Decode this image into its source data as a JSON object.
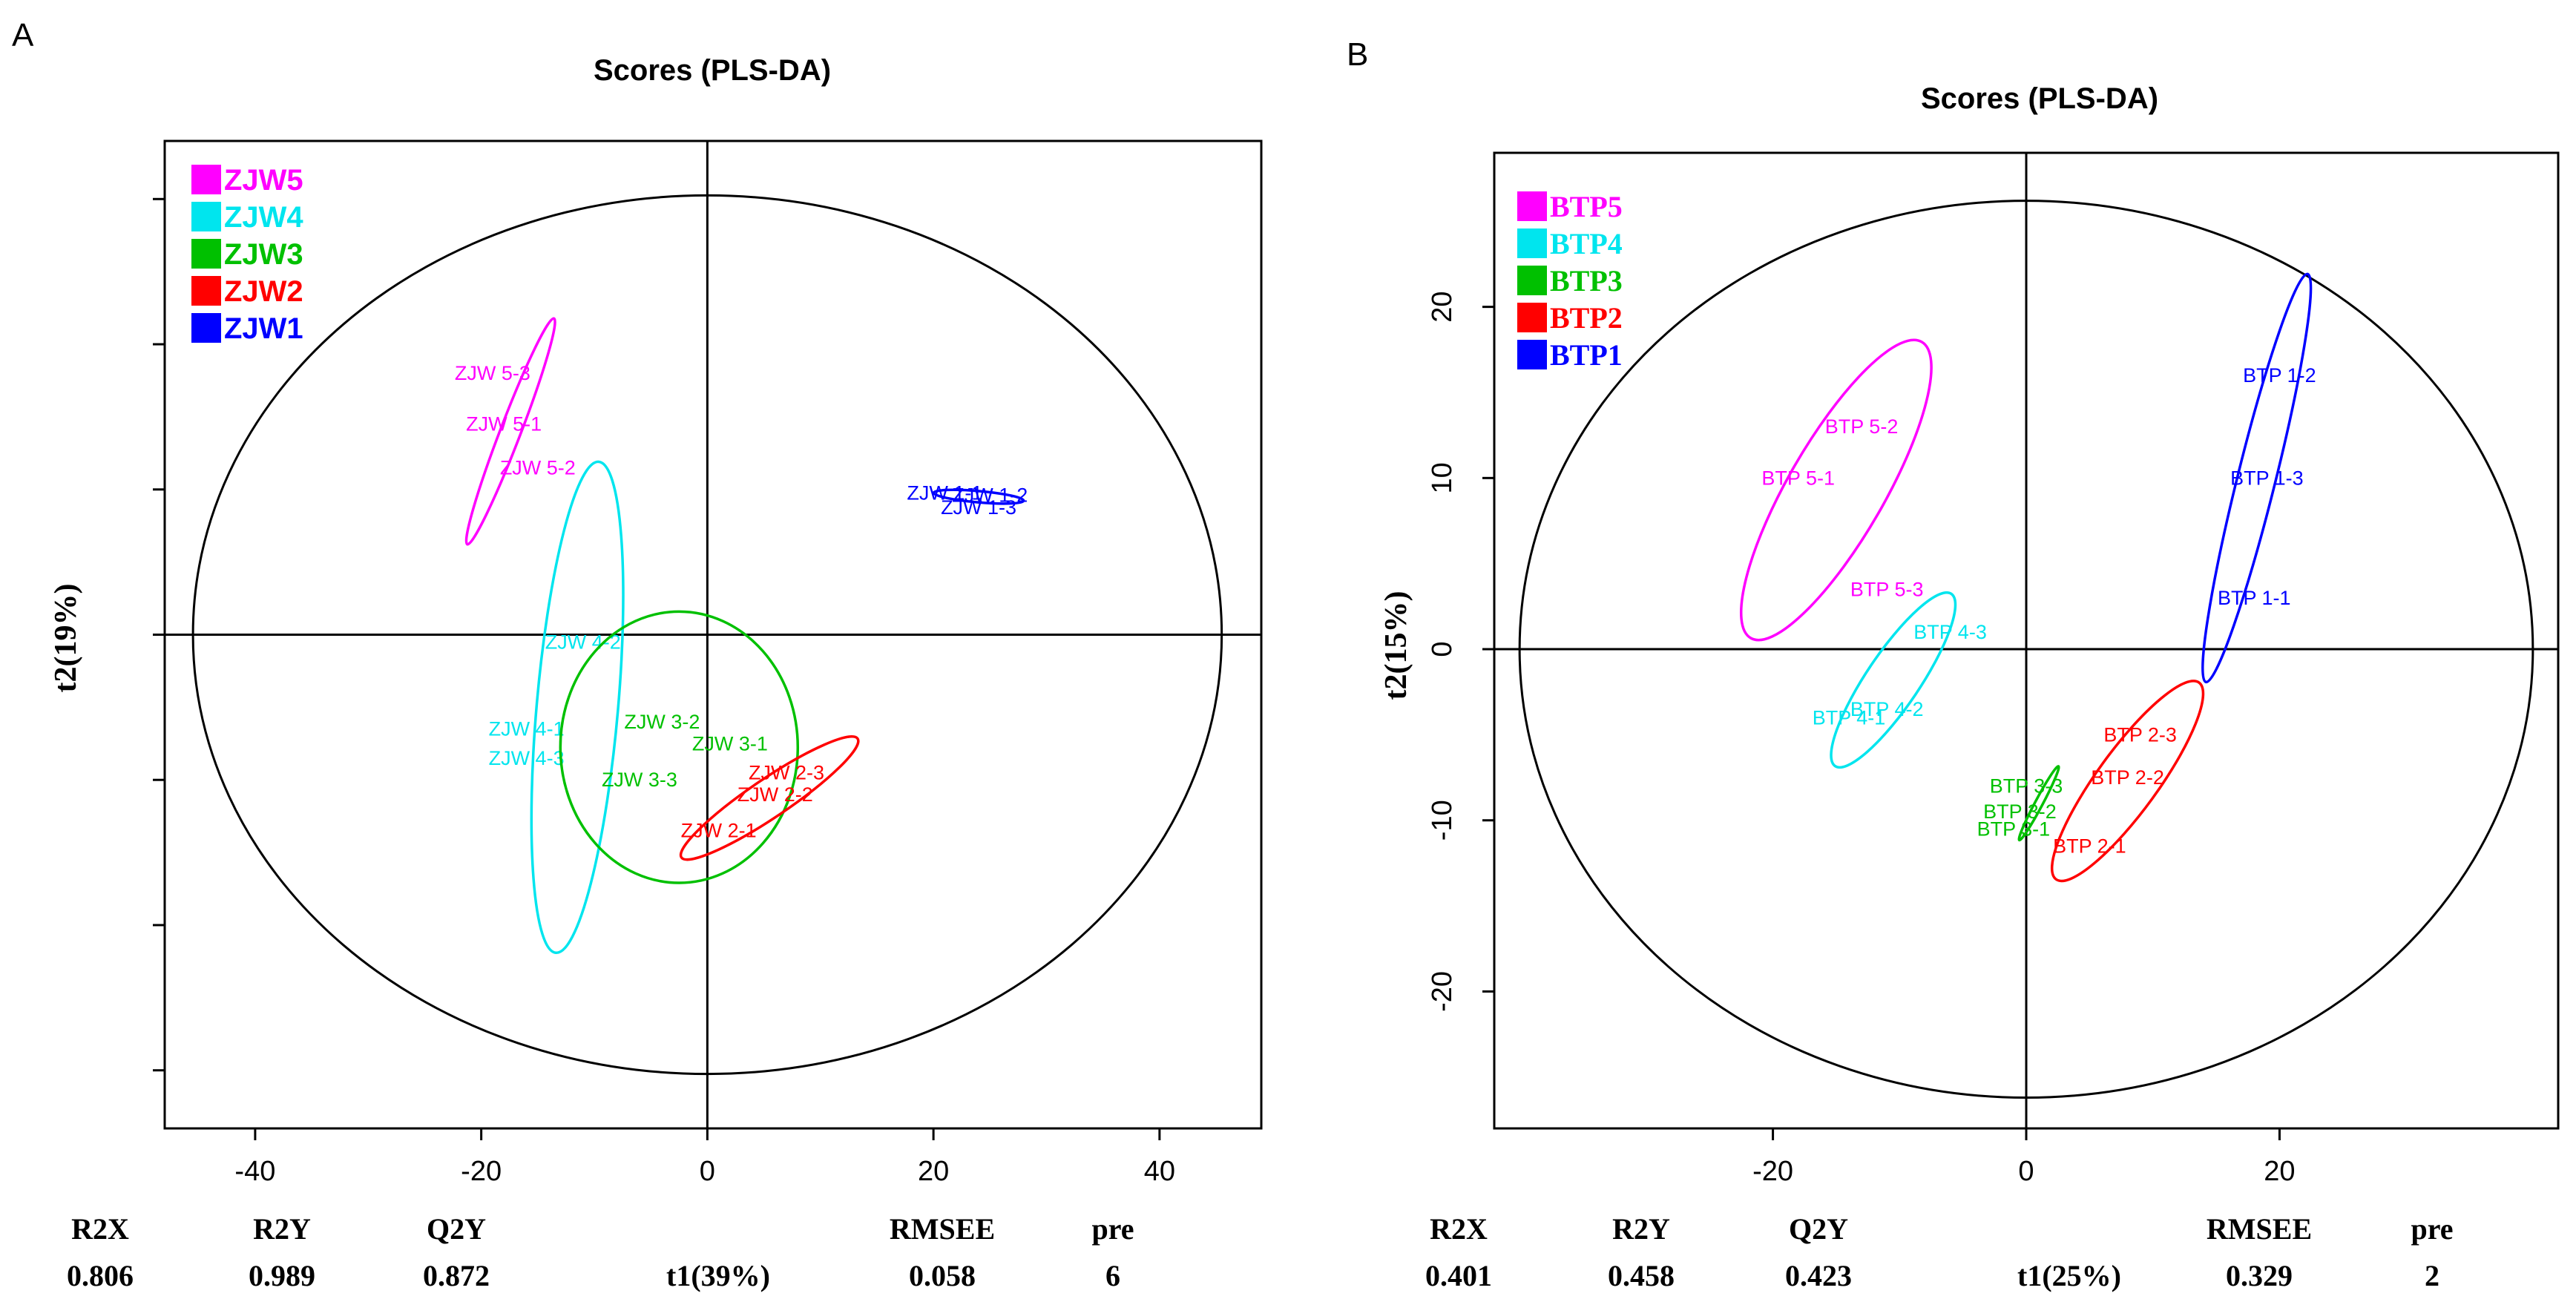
{
  "chart_data": [
    {
      "type": "scatter",
      "panel_letter": "A",
      "title": "Scores (PLS-DA)",
      "xlabel": "t1(39%)",
      "ylabel": "t2(19%)",
      "xlim": [
        -48,
        49
      ],
      "ylim": [
        -68,
        68
      ],
      "xticks": [
        -40,
        -20,
        0,
        20,
        40
      ],
      "yticks": [
        -60,
        -40,
        -20,
        0,
        20,
        40,
        60
      ],
      "ytick_labels_shown": false,
      "hotelling_ellipse": {
        "cx": 0,
        "cy": 0,
        "rx": 45.5,
        "ry": 60.5
      },
      "stats": [
        {
          "name": "R2X",
          "value": "0.806"
        },
        {
          "name": "R2Y",
          "value": "0.989"
        },
        {
          "name": "Q2Y",
          "value": "0.872"
        },
        {
          "name": "RMSEE",
          "value": "0.058"
        },
        {
          "name": "pre",
          "value": "6"
        }
      ],
      "legend_font": "sans",
      "series": [
        {
          "name": "ZJW5",
          "color": "#ff00ff",
          "points": [
            {
              "label": "ZJW 5-3",
              "x": -19,
              "y": 36
            },
            {
              "label": "ZJW 5-1",
              "x": -18,
              "y": 29
            },
            {
              "label": "ZJW 5-2",
              "x": -15,
              "y": 23
            }
          ],
          "ellipse": {
            "cx": -17.4,
            "cy": 28,
            "rx": 10.7,
            "ry": 0.9,
            "angle": -69
          }
        },
        {
          "name": "ZJW4",
          "color": "#00e5ee",
          "points": [
            {
              "label": "ZJW 4-2",
              "x": -11,
              "y": -1
            },
            {
              "label": "ZJW 4-1",
              "x": -16,
              "y": -13
            },
            {
              "label": "ZJW 4-3",
              "x": -16,
              "y": -17
            }
          ],
          "ellipse": {
            "cx": -11.5,
            "cy": -10,
            "rx": 3.6,
            "ry": 21.8,
            "angle": 5
          }
        },
        {
          "name": "ZJW3",
          "color": "#00c000",
          "points": [
            {
              "label": "ZJW 3-2",
              "x": -4,
              "y": -12
            },
            {
              "label": "ZJW 3-1",
              "x": 2,
              "y": -15
            },
            {
              "label": "ZJW 3-3",
              "x": -6,
              "y": -20
            }
          ],
          "ellipse": {
            "cx": -2.5,
            "cy": -15.5,
            "rx": 10.5,
            "ry": 12,
            "angle": 0
          }
        },
        {
          "name": "ZJW2",
          "color": "#ff0000",
          "points": [
            {
              "label": "ZJW 2-3",
              "x": 7,
              "y": -19
            },
            {
              "label": "ZJW 2-2",
              "x": 6,
              "y": -22
            },
            {
              "label": "ZJW 2-1",
              "x": 1,
              "y": -27
            }
          ],
          "ellipse": {
            "cx": 5.5,
            "cy": -22.5,
            "rx": 9.4,
            "ry": 1.7,
            "angle": -34
          }
        },
        {
          "name": "ZJW1",
          "color": "#0000ff",
          "points": [
            {
              "label": "ZJW 1-1",
              "x": 21,
              "y": 19.5
            },
            {
              "label": "ZJW 1-2",
              "x": 25,
              "y": 19.2
            },
            {
              "label": "ZJW 1-3",
              "x": 24,
              "y": 17.5
            }
          ],
          "ellipse": {
            "cx": 24,
            "cy": 19,
            "rx": 4,
            "ry": 0.5,
            "angle": 5
          }
        }
      ]
    },
    {
      "type": "scatter",
      "panel_letter": "B",
      "title": "Scores (PLS-DA)",
      "xlabel": "t1(25%)",
      "ylabel": "t2(15%)",
      "xlim": [
        -42,
        42
      ],
      "ylim": [
        -28,
        29
      ],
      "xticks": [
        -20,
        0,
        20
      ],
      "yticks": [
        -20,
        -10,
        0,
        10,
        20
      ],
      "ytick_labels_shown": true,
      "hotelling_ellipse": {
        "cx": 0,
        "cy": 0,
        "rx": 40,
        "ry": 26.2
      },
      "stats": [
        {
          "name": "R2X",
          "value": "0.401"
        },
        {
          "name": "R2Y",
          "value": "0.458"
        },
        {
          "name": "Q2Y",
          "value": "0.423"
        },
        {
          "name": "RMSEE",
          "value": "0.329"
        },
        {
          "name": "pre",
          "value": "2"
        }
      ],
      "legend_font": "serif",
      "series": [
        {
          "name": "BTP5",
          "color": "#ff00ff",
          "points": [
            {
              "label": "BTP 5-2",
              "x": -13,
              "y": 13
            },
            {
              "label": "BTP 5-1",
              "x": -18,
              "y": 10
            },
            {
              "label": "BTP 5-3",
              "x": -11,
              "y": 3.5
            }
          ],
          "ellipse": {
            "cx": -15,
            "cy": 9.3,
            "rx": 13.5,
            "ry": 3.8,
            "angle": -60
          }
        },
        {
          "name": "BTP4",
          "color": "#00e5ee",
          "points": [
            {
              "label": "BTP 4-3",
              "x": -6,
              "y": 1
            },
            {
              "label": "BTP 4-2",
              "x": -11,
              "y": -3.5
            },
            {
              "label": "BTP 4-1",
              "x": -14,
              "y": -4
            }
          ],
          "ellipse": {
            "cx": -10.5,
            "cy": -1.8,
            "rx": 8.2,
            "ry": 2.1,
            "angle": -56
          }
        },
        {
          "name": "BTP3",
          "color": "#00c000",
          "points": [
            {
              "label": "BTP 3-3",
              "x": 0,
              "y": -8
            },
            {
              "label": "BTP 3-2",
              "x": -0.5,
              "y": -9.5
            },
            {
              "label": "BTP 3-1",
              "x": -1,
              "y": -10.5
            }
          ],
          "ellipse": {
            "cx": 1,
            "cy": -9,
            "rx": 3.3,
            "ry": 0.3,
            "angle": -62
          }
        },
        {
          "name": "BTP2",
          "color": "#ff0000",
          "points": [
            {
              "label": "BTP 2-3",
              "x": 9,
              "y": -5
            },
            {
              "label": "BTP 2-2",
              "x": 8,
              "y": -7.5
            },
            {
              "label": "BTP 2-1",
              "x": 5,
              "y": -11.5
            }
          ],
          "ellipse": {
            "cx": 8,
            "cy": -7.7,
            "rx": 9.6,
            "ry": 2.4,
            "angle": -54
          }
        },
        {
          "name": "BTP1",
          "color": "#0000ff",
          "points": [
            {
              "label": "BTP 1-2",
              "x": 20,
              "y": 16
            },
            {
              "label": "BTP 1-3",
              "x": 19,
              "y": 10
            },
            {
              "label": "BTP 1-1",
              "x": 18,
              "y": 3
            }
          ],
          "ellipse": {
            "cx": 18.2,
            "cy": 10,
            "rx": 16.6,
            "ry": 1.5,
            "angle": -76
          }
        }
      ]
    }
  ]
}
